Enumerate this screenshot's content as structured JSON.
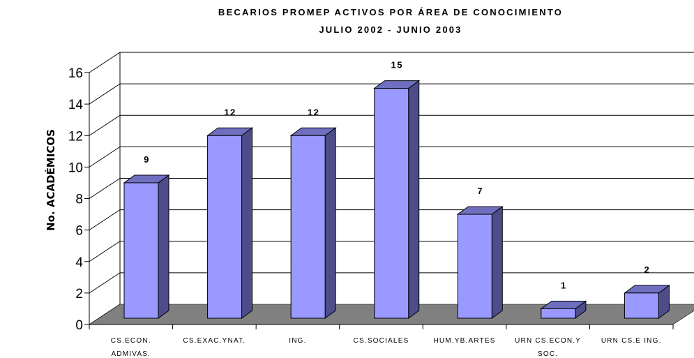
{
  "chart_data": {
    "type": "bar",
    "title": "BECARIOS PROMEP ACTIVOS POR ÁREA DE CONOCIMIENTO",
    "subtitle": "JULIO 2002 - JUNIO 2003",
    "xlabel": "",
    "ylabel": "No. ACADÉMICOS",
    "ylim": [
      0,
      16
    ],
    "yticks": [
      "0",
      "2",
      "4",
      "6",
      "8",
      "10",
      "12",
      "14",
      "16"
    ],
    "categories": [
      [
        "CS.ECON.",
        "ADMIVAS."
      ],
      [
        "CS.EXAC.YNAT."
      ],
      [
        "ING."
      ],
      [
        "CS.SOCIALES"
      ],
      [
        "HUM.YB.ARTES"
      ],
      [
        "URN CS.ECON.Y",
        "SOC."
      ],
      [
        "URN CS.E ING."
      ]
    ],
    "values": [
      9,
      12,
      12,
      15,
      7,
      1,
      2
    ],
    "data_labels": [
      "9",
      "12",
      "12",
      "15",
      "7",
      "1",
      "2"
    ],
    "grid": true,
    "legend": "none",
    "colors": {
      "bar_front": "#9999ff",
      "bar_side": "#4d4d8a",
      "bar_top": "#6f6fc0",
      "floor": "#808080",
      "gridline": "#000000"
    }
  }
}
